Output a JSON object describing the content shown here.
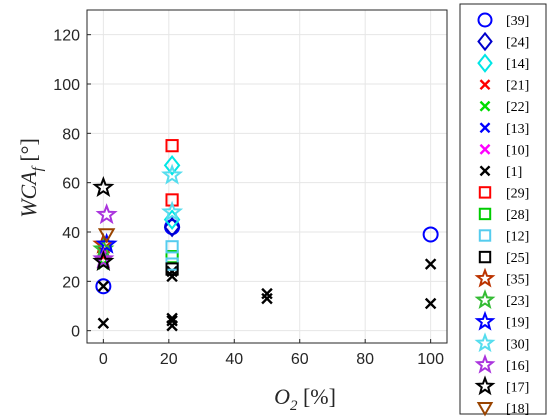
{
  "chart_data": {
    "type": "scatter",
    "title": "",
    "xlabel": {
      "main": "O",
      "sub": "2",
      "unit": " [%]"
    },
    "ylabel": {
      "main": "WCA",
      "sub": "f",
      "unit": " [°]"
    },
    "xlim": [
      -5,
      105
    ],
    "ylim": [
      -5,
      130
    ],
    "xticks": [
      0,
      20,
      40,
      60,
      80,
      100
    ],
    "yticks": [
      0,
      20,
      40,
      60,
      80,
      100,
      120
    ],
    "grid": true,
    "legend_position": "right-outside",
    "series": [
      {
        "name": "[39]",
        "marker": "circle",
        "color": "#0000ff",
        "points": [
          [
            0,
            18
          ],
          [
            21,
            42
          ],
          [
            100,
            39
          ]
        ]
      },
      {
        "name": "[24]",
        "marker": "diamond",
        "color": "#0000cc",
        "points": [
          [
            21,
            42
          ]
        ]
      },
      {
        "name": "[14]",
        "marker": "diamond",
        "color": "#00e6e6",
        "points": [
          [
            21,
            67
          ],
          [
            21,
            45
          ]
        ]
      },
      {
        "name": "[21]",
        "marker": "x",
        "color": "#ff0000",
        "points": [
          [
            0,
            30
          ]
        ]
      },
      {
        "name": "[22]",
        "marker": "x",
        "color": "#00dd00",
        "points": [
          [
            0,
            27
          ]
        ]
      },
      {
        "name": "[13]",
        "marker": "x",
        "color": "#0000ff",
        "points": [
          [
            0,
            32
          ]
        ]
      },
      {
        "name": "[10]",
        "marker": "x",
        "color": "#ff00ff",
        "points": [
          [
            0,
            31
          ]
        ]
      },
      {
        "name": "[1]",
        "marker": "x",
        "color": "#000000",
        "points": [
          [
            0,
            3
          ],
          [
            0,
            18
          ],
          [
            21,
            2
          ],
          [
            21,
            4
          ],
          [
            21,
            5
          ],
          [
            21,
            22
          ],
          [
            21,
            24
          ],
          [
            50,
            13
          ],
          [
            50,
            15
          ],
          [
            100,
            11
          ],
          [
            100,
            27
          ]
        ]
      },
      {
        "name": "[29]",
        "marker": "square",
        "color": "#ff0000",
        "points": [
          [
            21,
            75
          ],
          [
            21,
            53
          ]
        ]
      },
      {
        "name": "[28]",
        "marker": "square",
        "color": "#00cc00",
        "points": [
          [
            21,
            30
          ]
        ]
      },
      {
        "name": "[12]",
        "marker": "square",
        "color": "#55ccee",
        "points": [
          [
            21,
            34
          ],
          [
            21,
            27
          ]
        ]
      },
      {
        "name": "[25]",
        "marker": "square",
        "color": "#000000",
        "points": [
          [
            21,
            25
          ]
        ]
      },
      {
        "name": "[35]",
        "marker": "star",
        "color": "#bb3300",
        "points": [
          [
            0,
            35
          ]
        ]
      },
      {
        "name": "[23]",
        "marker": "star",
        "color": "#33bb33",
        "points": [
          [
            0,
            33
          ]
        ]
      },
      {
        "name": "[19]",
        "marker": "star",
        "color": "#0000ff",
        "points": [
          [
            1,
            35
          ]
        ]
      },
      {
        "name": "[30]",
        "marker": "star",
        "color": "#55ddee",
        "points": [
          [
            21,
            63
          ],
          [
            21,
            48
          ]
        ]
      },
      {
        "name": "[16]",
        "marker": "star",
        "color": "#aa33dd",
        "points": [
          [
            1,
            47
          ],
          [
            0,
            29
          ]
        ]
      },
      {
        "name": "[17]",
        "marker": "star",
        "color": "#000000",
        "points": [
          [
            0,
            58
          ],
          [
            0,
            28
          ]
        ]
      },
      {
        "name": "[18]",
        "marker": "triangle-down",
        "color": "#994400",
        "points": [
          [
            1,
            39
          ]
        ]
      }
    ]
  }
}
